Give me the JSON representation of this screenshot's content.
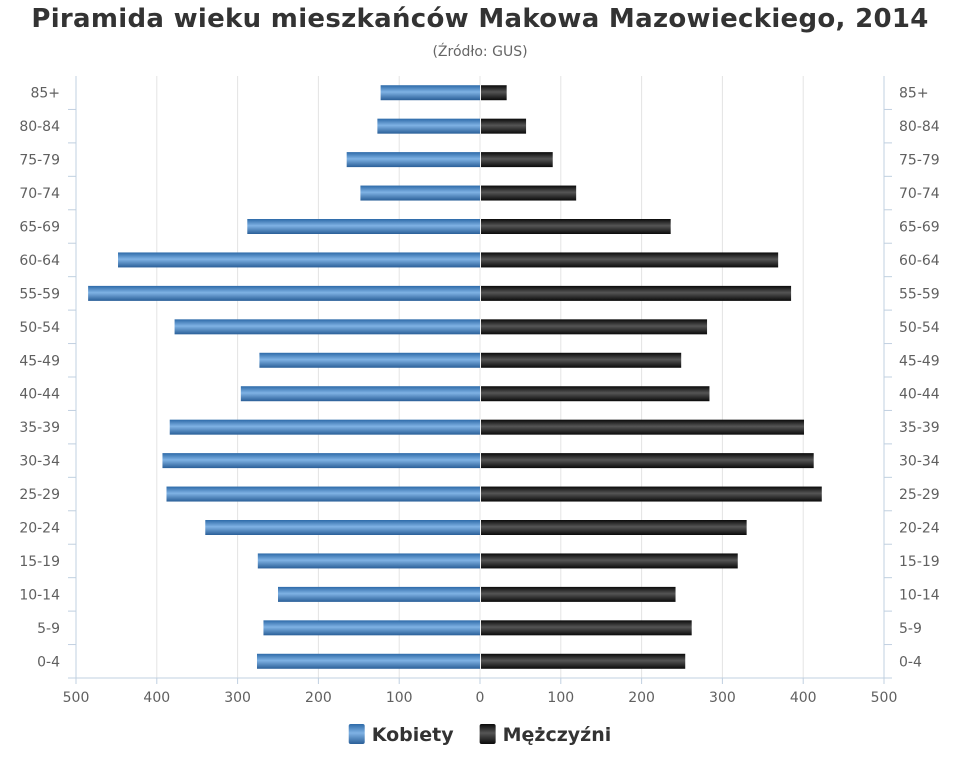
{
  "chart_data": {
    "type": "bar",
    "title": "Piramida wieku mieszkańców Makowa Mazowieckiego, 2014",
    "subtitle": "(Źródło: GUS)",
    "categories": [
      "0-4",
      "5-9",
      "10-14",
      "15-19",
      "20-24",
      "25-29",
      "30-34",
      "35-39",
      "40-44",
      "45-49",
      "50-54",
      "55-59",
      "60-64",
      "65-69",
      "70-74",
      "75-79",
      "80-84",
      "85+"
    ],
    "series": [
      {
        "name": "Kobiety",
        "color": "#4a87c3",
        "values": [
          276,
          268,
          250,
          275,
          340,
          388,
          393,
          384,
          296,
          273,
          378,
          485,
          448,
          288,
          148,
          165,
          127,
          123
        ]
      },
      {
        "name": "Mężczyźni",
        "color": "#1c1c1c",
        "values": [
          254,
          262,
          242,
          319,
          330,
          423,
          413,
          401,
          284,
          249,
          281,
          385,
          369,
          236,
          119,
          90,
          57,
          33
        ]
      }
    ],
    "xlim": [
      -500,
      500
    ],
    "x_ticks": [
      "500",
      "400",
      "300",
      "200",
      "100",
      "0",
      "100",
      "200",
      "300",
      "400",
      "500"
    ],
    "grid": true,
    "legend_position": "bottom-center"
  }
}
